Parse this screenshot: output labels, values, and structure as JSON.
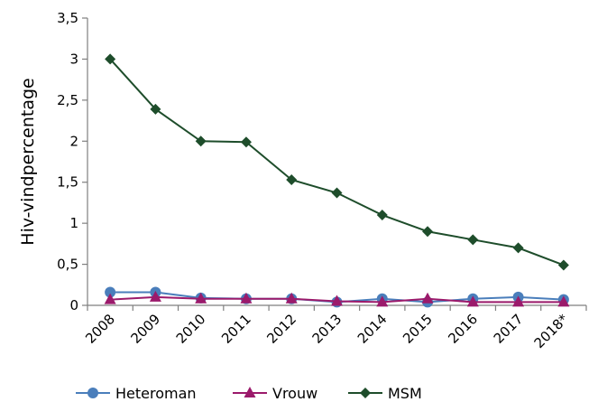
{
  "chart_data": {
    "type": "line",
    "title": "",
    "xlabel": "",
    "ylabel": "Hiv-vindpercentage",
    "ylim": [
      0,
      3.5
    ],
    "y_ticks": [
      "0",
      "0,5",
      "1",
      "1,5",
      "2",
      "2,5",
      "3",
      "3,5"
    ],
    "y_tick_values": [
      0,
      0.5,
      1,
      1.5,
      2,
      2.5,
      3,
      3.5
    ],
    "categories": [
      "2008",
      "2009",
      "2010",
      "2011",
      "2012",
      "2013",
      "2014",
      "2015",
      "2016",
      "2017",
      "2018*"
    ],
    "grid": false,
    "legend_position": "bottom",
    "series": [
      {
        "name": "Heteroman",
        "color": "#4a7ebb",
        "marker": "circle",
        "values": [
          0.16,
          0.16,
          0.09,
          0.08,
          0.08,
          0.04,
          0.08,
          0.04,
          0.08,
          0.1,
          0.07
        ]
      },
      {
        "name": "Vrouw",
        "color": "#9b1a6b",
        "marker": "triangle",
        "values": [
          0.07,
          0.1,
          0.08,
          0.08,
          0.08,
          0.05,
          0.04,
          0.08,
          0.04,
          0.04,
          0.04
        ]
      },
      {
        "name": "MSM",
        "color": "#1e4d2b",
        "marker": "diamond",
        "values": [
          3.0,
          2.39,
          2.0,
          1.99,
          1.53,
          1.37,
          1.1,
          0.9,
          0.8,
          0.7,
          0.49
        ]
      }
    ]
  }
}
